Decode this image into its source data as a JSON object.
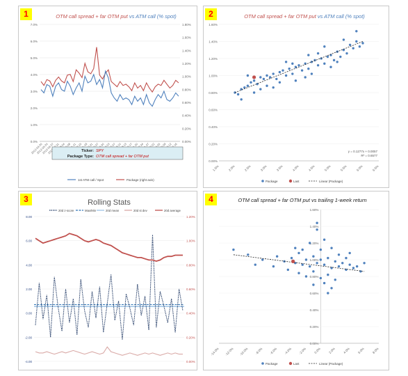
{
  "badges": [
    "1",
    "2",
    "3",
    "4"
  ],
  "chart_data": [
    {
      "type": "line",
      "title_part1": "OTM call spread + far OTM put",
      "title_part2": " vs ATM call (% spot)",
      "colors": {
        "left": "#4f81bd",
        "right": "#c0504d",
        "title_red": "#c0504d",
        "title_blue": "#4f81bd"
      },
      "ylim_left": [
        0,
        7
      ],
      "yticks_left": [
        "0.0%",
        "1.0%",
        "2.0%",
        "3.0%",
        "4.0%",
        "5.0%",
        "6.0%",
        "7.0%"
      ],
      "ylim_right": [
        0,
        1.8
      ],
      "yticks_right": [
        "0.00%",
        "0.20%",
        "0.40%",
        "0.60%",
        "0.80%",
        "1.00%",
        "1.20%",
        "1.40%",
        "1.60%",
        "1.80%"
      ],
      "xticks": [
        "2012-04-20",
        "2012-05-24",
        "2012-06-27",
        "2012-07-31",
        "2012-09-04",
        "2012-10-08",
        "2012-11-11",
        "2012-12-15",
        "2013-01-18",
        "2013-02-21",
        "2013-03-27",
        "2013-04-30",
        "2013-06-03",
        "2013-07-07",
        "2013-08-10",
        "2013-09-13",
        "2013-10-17",
        "2013-11-20",
        "2013-12-24",
        "2014-01-27",
        "2014-03-02",
        "2014-04-05",
        "2014-05-09",
        "2014-06-12",
        "2014-07-16"
      ],
      "series": [
        {
          "name": "1st ATM call / Spot",
          "axis": "left",
          "values": [
            3.1,
            2.9,
            3.4,
            3.3,
            2.7,
            3.3,
            3.5,
            3.1,
            3.0,
            3.6,
            3.3,
            2.8,
            3.2,
            3.5,
            3.0,
            3.9,
            3.5,
            3.6,
            4.0,
            3.4,
            3.7,
            3.2,
            4.2,
            3.8,
            2.9,
            2.6,
            2.4,
            2.8,
            2.5,
            2.6,
            2.5,
            2.2,
            2.7,
            2.4,
            2.6,
            2.2,
            2.8,
            2.3,
            2.1,
            2.5,
            2.8,
            2.6,
            3.0,
            2.5,
            2.4,
            2.6,
            2.9,
            2.7
          ]
        },
        {
          "name": "Package (right axis)",
          "axis": "right",
          "values": [
            0.92,
            0.86,
            0.95,
            0.93,
            0.84,
            0.94,
            0.99,
            0.93,
            0.9,
            1.02,
            1.03,
            0.92,
            1.1,
            1.05,
            0.98,
            1.2,
            1.07,
            1.04,
            1.12,
            1.45,
            1.02,
            0.96,
            1.05,
            1.1,
            0.92,
            0.88,
            0.84,
            0.92,
            0.86,
            0.88,
            0.84,
            0.78,
            0.9,
            0.82,
            0.86,
            0.78,
            0.9,
            0.82,
            0.76,
            0.84,
            0.88,
            0.86,
            0.94,
            0.88,
            0.82,
            0.86,
            0.94,
            0.9
          ]
        }
      ],
      "info_box": {
        "ticker_label": "Ticker:",
        "ticker": "SPY",
        "package_label": "Package Type:",
        "package": "OTM call spread + far OTM put"
      }
    },
    {
      "type": "scatter",
      "title_part1": "OTM call spread + far OTM put",
      "title_part2": " vs ATM call (% spot)",
      "xlim": [
        1.5,
        6.5
      ],
      "xticks": [
        "1.5%",
        "2.0%",
        "2.5%",
        "3.0%",
        "3.5%",
        "4.0%",
        "4.5%",
        "5.0%",
        "5.5%",
        "6.0%",
        "6.5%"
      ],
      "ylim": [
        0,
        1.6
      ],
      "yticks": [
        "0.00%",
        "0.20%",
        "0.40%",
        "0.60%",
        "0.80%",
        "1.00%",
        "1.20%",
        "1.40%",
        "1.60%"
      ],
      "package_points": [
        [
          2.0,
          0.8
        ],
        [
          2.1,
          0.78
        ],
        [
          2.2,
          0.84
        ],
        [
          2.3,
          0.86
        ],
        [
          2.4,
          0.88
        ],
        [
          2.5,
          0.92
        ],
        [
          2.6,
          0.94
        ],
        [
          2.7,
          0.9
        ],
        [
          2.8,
          0.98
        ],
        [
          2.9,
          0.96
        ],
        [
          3.0,
          1.0
        ],
        [
          3.1,
          0.98
        ],
        [
          3.2,
          1.02
        ],
        [
          3.3,
          0.96
        ],
        [
          3.4,
          1.04
        ],
        [
          3.5,
          1.06
        ],
        [
          3.6,
          1.0
        ],
        [
          3.7,
          1.08
        ],
        [
          3.8,
          1.02
        ],
        [
          3.9,
          1.1
        ],
        [
          4.0,
          1.12
        ],
        [
          4.1,
          1.06
        ],
        [
          4.2,
          1.14
        ],
        [
          4.3,
          1.08
        ],
        [
          4.4,
          1.16
        ],
        [
          4.5,
          1.18
        ],
        [
          4.6,
          1.12
        ],
        [
          4.7,
          1.2
        ],
        [
          4.8,
          1.14
        ],
        [
          4.9,
          1.22
        ],
        [
          5.0,
          1.24
        ],
        [
          5.1,
          1.18
        ],
        [
          5.2,
          1.28
        ],
        [
          5.3,
          1.22
        ],
        [
          5.4,
          1.3
        ],
        [
          5.5,
          1.26
        ],
        [
          5.6,
          1.36
        ],
        [
          5.7,
          1.32
        ],
        [
          5.8,
          1.4
        ],
        [
          5.9,
          1.34
        ],
        [
          6.0,
          1.38
        ],
        [
          2.2,
          0.72
        ],
        [
          2.6,
          0.8
        ],
        [
          3.0,
          0.88
        ],
        [
          3.4,
          0.92
        ],
        [
          3.8,
          1.14
        ],
        [
          4.2,
          0.98
        ],
        [
          4.6,
          1.26
        ],
        [
          5.0,
          1.1
        ],
        [
          5.4,
          1.42
        ],
        [
          2.4,
          1.0
        ],
        [
          3.2,
          0.86
        ],
        [
          3.6,
          1.16
        ],
        [
          4.4,
          1.02
        ],
        [
          4.8,
          1.34
        ],
        [
          5.2,
          1.16
        ],
        [
          5.8,
          1.52
        ],
        [
          2.8,
          0.84
        ],
        [
          3.9,
          0.94
        ],
        [
          4.3,
          1.24
        ]
      ],
      "last_point": [
        2.6,
        0.98
      ],
      "trend_line": [
        [
          2.0,
          0.8
        ],
        [
          6.0,
          1.4
        ]
      ],
      "equation": "y = 0.1277x + 0.0057",
      "r2": "R² = 0.6577",
      "legend": [
        "Package",
        "Last",
        "Linear (Package)"
      ]
    },
    {
      "type": "line",
      "title": "Rolling Stats",
      "ylim_left": [
        -4,
        8
      ],
      "yticks_left": [
        "-4.00",
        "-2.00",
        "0.00",
        "2.00",
        "4.00",
        "6.00",
        "8.00"
      ],
      "ylim_right": [
        0,
        1.2
      ],
      "yticks_right": [
        "0.00%",
        "0.20%",
        "0.40%",
        "0.60%",
        "0.80%",
        "1.00%",
        "1.20%"
      ],
      "legend": [
        "20d z-score",
        "Max/Min",
        "20d mean",
        "20d st dev",
        "20d average"
      ],
      "series": [
        {
          "name": "20d z-score",
          "axis": "left",
          "values": [
            -1.0,
            2.5,
            -0.5,
            1.5,
            -2.0,
            3.0,
            0.5,
            -1.5,
            2.0,
            -0.8,
            1.2,
            -1.8,
            2.8,
            0.2,
            -1.2,
            1.8,
            -0.4,
            2.2,
            -1.6,
            0.8,
            3.2,
            -0.6,
            1.0,
            -2.2,
            1.6,
            0.4,
            -1.0,
            2.4,
            -0.2,
            1.4,
            -1.4,
            6.5,
            -1.2,
            1.8,
            0.6,
            -0.8,
            1.2,
            -1.6,
            2.0,
            0.2
          ]
        },
        {
          "name": "20d average",
          "axis": "right",
          "values": [
            1.02,
            1.0,
            0.98,
            0.99,
            1.0,
            1.01,
            1.02,
            1.03,
            1.04,
            1.06,
            1.05,
            1.04,
            1.02,
            1.0,
            0.99,
            1.0,
            1.01,
            1.0,
            0.98,
            0.97,
            0.96,
            0.94,
            0.92,
            0.9,
            0.89,
            0.88,
            0.87,
            0.86,
            0.86,
            0.85,
            0.84,
            0.84,
            0.83,
            0.84,
            0.86,
            0.87,
            0.87,
            0.88,
            0.88,
            0.88
          ]
        },
        {
          "name": "20d st dev",
          "axis": "right",
          "values": [
            0.08,
            0.07,
            0.07,
            0.08,
            0.07,
            0.06,
            0.07,
            0.08,
            0.07,
            0.08,
            0.09,
            0.08,
            0.07,
            0.06,
            0.07,
            0.08,
            0.07,
            0.06,
            0.07,
            0.12,
            0.08,
            0.07,
            0.06,
            0.05,
            0.06,
            0.07,
            0.06,
            0.05,
            0.06,
            0.07,
            0.06,
            0.07,
            0.06,
            0.05,
            0.06,
            0.07,
            0.06,
            0.07,
            0.06,
            0.06
          ]
        }
      ],
      "max_line": 0.7,
      "mean_line": 0.55
    },
    {
      "type": "scatter",
      "title_part1": "OTM call spread + far OTM put",
      "title_part2": " vs trailing 1-week return",
      "xlim": [
        -14,
        8
      ],
      "xticks": [
        "-14.0%",
        "-12.0%",
        "-10.0%",
        "-8.0%",
        "-6.0%",
        "-4.0%",
        "-2.0%",
        "0.0%",
        "2.0%",
        "4.0%",
        "6.0%",
        "8.0%"
      ],
      "ylim": [
        0,
        1.6
      ],
      "yticks": [
        "0.00%",
        "0.20%",
        "0.40%",
        "0.60%",
        "0.80%",
        "1.00%",
        "1.20%",
        "1.40%",
        "1.60%"
      ],
      "package_points": [
        [
          -12.0,
          1.12
        ],
        [
          -10.0,
          1.06
        ],
        [
          -8.0,
          1.0
        ],
        [
          -6.0,
          1.04
        ],
        [
          -5.0,
          0.98
        ],
        [
          -4.0,
          1.02
        ],
        [
          -3.5,
          0.96
        ],
        [
          -3.0,
          1.08
        ],
        [
          -2.5,
          0.94
        ],
        [
          -2.0,
          1.0
        ],
        [
          -1.5,
          0.92
        ],
        [
          -1.0,
          1.04
        ],
        [
          -0.5,
          0.96
        ],
        [
          0.0,
          1.0
        ],
        [
          0.5,
          0.94
        ],
        [
          1.0,
          1.02
        ],
        [
          1.5,
          0.9
        ],
        [
          2.0,
          0.98
        ],
        [
          2.5,
          0.92
        ],
        [
          3.0,
          0.96
        ],
        [
          3.5,
          0.88
        ],
        [
          4.0,
          0.94
        ],
        [
          4.5,
          0.9
        ],
        [
          5.0,
          0.92
        ],
        [
          6.0,
          0.96
        ],
        [
          -3.0,
          0.84
        ],
        [
          -2.0,
          0.8
        ],
        [
          -1.0,
          0.86
        ],
        [
          0.0,
          0.78
        ],
        [
          1.0,
          0.82
        ],
        [
          2.0,
          0.76
        ],
        [
          -1.5,
          1.2
        ],
        [
          0.5,
          1.24
        ],
        [
          -0.5,
          1.36
        ],
        [
          1.5,
          1.14
        ],
        [
          -4.5,
          0.88
        ],
        [
          -2.5,
          1.12
        ],
        [
          0.0,
          1.12
        ],
        [
          2.5,
          1.06
        ],
        [
          3.5,
          1.02
        ],
        [
          -1.0,
          0.7
        ],
        [
          0.5,
          0.72
        ],
        [
          1.5,
          0.66
        ],
        [
          -0.5,
          1.44
        ],
        [
          -6.5,
          0.92
        ],
        [
          -9.0,
          0.94
        ],
        [
          4.0,
          1.08
        ],
        [
          5.5,
          0.86
        ],
        [
          -3.5,
          1.14
        ],
        [
          1.0,
          0.6
        ]
      ],
      "last_point": [
        -3.8,
        0.98
      ],
      "trend_line": [
        [
          -12.0,
          1.06
        ],
        [
          6.0,
          0.86
        ]
      ],
      "legend": [
        "Package",
        "Last",
        "Linear (Package)"
      ]
    }
  ]
}
